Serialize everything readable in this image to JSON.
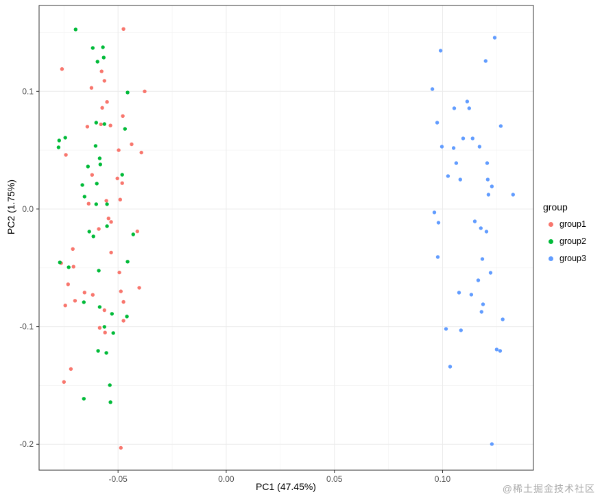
{
  "watermark": "@稀土掘金技术社区",
  "chart_data": {
    "type": "scatter",
    "title": "",
    "xlabel": "PC1 (47.45%)",
    "ylabel": "PC2 (1.75%)",
    "xlim": [
      -0.0865,
      0.142
    ],
    "ylim": [
      -0.222,
      0.173
    ],
    "grid": true,
    "grid_major_color": "#ebebeb",
    "grid_minor_color": "#f5f5f5",
    "panel_border_color": "#333333",
    "tick_color": "#333333",
    "tick_label_color": "#4d4d4d",
    "point_radius": 2.7,
    "x_ticks": [
      {
        "value": -0.05,
        "label": "-0.05"
      },
      {
        "value": 0.0,
        "label": "0.00"
      },
      {
        "value": 0.05,
        "label": "0.05"
      },
      {
        "value": 0.1,
        "label": "0.10"
      }
    ],
    "y_ticks": [
      {
        "value": 0.1,
        "label": "0.1"
      },
      {
        "value": 0.0,
        "label": "0.0"
      },
      {
        "value": -0.1,
        "label": "-0.1"
      },
      {
        "value": -0.2,
        "label": "-0.2"
      }
    ],
    "x_minor_ticks": [
      -0.075,
      -0.025,
      0.025,
      0.075,
      0.125
    ],
    "y_minor_ticks": [
      0.15,
      0.05,
      -0.05,
      -0.15
    ],
    "legend": {
      "title": "group",
      "position": "right"
    },
    "series": [
      {
        "name": "group1",
        "color": "#F8766D",
        "points": [
          [
            -0.0475,
            0.153
          ],
          [
            -0.0759,
            0.119
          ],
          [
            -0.0576,
            0.117
          ],
          [
            -0.0563,
            0.109
          ],
          [
            -0.0623,
            0.103
          ],
          [
            -0.0377,
            0.1
          ],
          [
            -0.0551,
            0.091
          ],
          [
            -0.0573,
            0.086
          ],
          [
            -0.0478,
            0.079
          ],
          [
            -0.0642,
            0.07
          ],
          [
            -0.0579,
            0.072
          ],
          [
            -0.0535,
            0.071
          ],
          [
            -0.0437,
            0.055
          ],
          [
            -0.0392,
            0.048
          ],
          [
            -0.0741,
            0.046
          ],
          [
            -0.0497,
            0.05
          ],
          [
            -0.062,
            0.029
          ],
          [
            -0.0503,
            0.026
          ],
          [
            -0.0481,
            0.022
          ],
          [
            -0.0636,
            0.0045
          ],
          [
            -0.0554,
            0.007
          ],
          [
            -0.049,
            0.008
          ],
          [
            -0.0544,
            -0.008
          ],
          [
            -0.0532,
            -0.011
          ],
          [
            -0.0589,
            -0.017
          ],
          [
            -0.0411,
            -0.019
          ],
          [
            -0.0709,
            -0.034
          ],
          [
            -0.0532,
            -0.037
          ],
          [
            -0.0763,
            -0.046
          ],
          [
            -0.0706,
            -0.049
          ],
          [
            -0.0494,
            -0.054
          ],
          [
            -0.0731,
            -0.064
          ],
          [
            -0.0655,
            -0.071
          ],
          [
            -0.0617,
            -0.073
          ],
          [
            -0.0699,
            -0.078
          ],
          [
            -0.0744,
            -0.082
          ],
          [
            -0.0487,
            -0.07
          ],
          [
            -0.0402,
            -0.067
          ],
          [
            -0.0475,
            -0.079
          ],
          [
            -0.0563,
            -0.086
          ],
          [
            -0.0585,
            -0.101
          ],
          [
            -0.056,
            -0.105
          ],
          [
            -0.0475,
            -0.095
          ],
          [
            -0.0718,
            -0.136
          ],
          [
            -0.075,
            -0.147
          ],
          [
            -0.0487,
            -0.203
          ]
        ]
      },
      {
        "name": "group2",
        "color": "#00BA38",
        "points": [
          [
            -0.0696,
            0.1526
          ],
          [
            -0.0617,
            0.1369
          ],
          [
            -0.057,
            0.1375
          ],
          [
            -0.0566,
            0.1287
          ],
          [
            -0.0595,
            0.1252
          ],
          [
            -0.0456,
            0.099
          ],
          [
            -0.0772,
            0.0582
          ],
          [
            -0.0744,
            0.0606
          ],
          [
            -0.0601,
            0.0734
          ],
          [
            -0.0563,
            0.0722
          ],
          [
            -0.0468,
            0.0681
          ],
          [
            -0.0775,
            0.0524
          ],
          [
            -0.0604,
            0.0536
          ],
          [
            -0.0585,
            0.0431
          ],
          [
            -0.0639,
            0.0361
          ],
          [
            -0.0582,
            0.0379
          ],
          [
            -0.0665,
            0.0204
          ],
          [
            -0.0598,
            0.0216
          ],
          [
            -0.0481,
            0.0291
          ],
          [
            -0.0655,
            0.0105
          ],
          [
            -0.0601,
            0.0041
          ],
          [
            -0.0551,
            0.0041
          ],
          [
            -0.0633,
            -0.0192
          ],
          [
            -0.0614,
            -0.0233
          ],
          [
            -0.0551,
            -0.0146
          ],
          [
            -0.043,
            -0.0216
          ],
          [
            -0.0769,
            -0.0454
          ],
          [
            -0.0728,
            -0.0495
          ],
          [
            -0.0589,
            -0.0524
          ],
          [
            -0.0456,
            -0.0448
          ],
          [
            -0.0658,
            -0.0792
          ],
          [
            -0.0585,
            -0.0833
          ],
          [
            -0.0528,
            -0.0891
          ],
          [
            -0.0459,
            -0.0914
          ],
          [
            -0.0563,
            -0.1002
          ],
          [
            -0.0522,
            -0.1054
          ],
          [
            -0.0592,
            -0.1206
          ],
          [
            -0.0554,
            -0.1223
          ],
          [
            -0.0538,
            -0.1497
          ],
          [
            -0.0658,
            -0.1613
          ],
          [
            -0.0535,
            -0.1642
          ]
        ]
      },
      {
        "name": "group3",
        "color": "#619CFF",
        "points": [
          [
            0.1241,
            0.1456
          ],
          [
            0.0991,
            0.1346
          ],
          [
            0.1199,
            0.1258
          ],
          [
            0.0953,
            0.1019
          ],
          [
            0.1114,
            0.0914
          ],
          [
            0.1054,
            0.0856
          ],
          [
            0.1123,
            0.0856
          ],
          [
            0.0975,
            0.0734
          ],
          [
            0.1269,
            0.0705
          ],
          [
            0.0997,
            0.053
          ],
          [
            0.1051,
            0.0518
          ],
          [
            0.1095,
            0.06
          ],
          [
            0.1139,
            0.06
          ],
          [
            0.1171,
            0.053
          ],
          [
            0.1063,
            0.039
          ],
          [
            0.1206,
            0.039
          ],
          [
            0.1025,
            0.028
          ],
          [
            0.1082,
            0.025
          ],
          [
            0.1209,
            0.025
          ],
          [
            0.1228,
            0.0192
          ],
          [
            0.1212,
            0.0122
          ],
          [
            0.1326,
            0.0122
          ],
          [
            0.0962,
            -0.0029
          ],
          [
            0.0981,
            -0.0116
          ],
          [
            0.1149,
            -0.0105
          ],
          [
            0.1177,
            -0.0163
          ],
          [
            0.1203,
            -0.0192
          ],
          [
            0.0978,
            -0.0408
          ],
          [
            0.1184,
            -0.0425
          ],
          [
            0.1222,
            -0.0542
          ],
          [
            0.1165,
            -0.0606
          ],
          [
            0.1076,
            -0.0711
          ],
          [
            0.1133,
            -0.0728
          ],
          [
            0.1187,
            -0.081
          ],
          [
            0.118,
            -0.0874
          ],
          [
            0.1278,
            -0.0938
          ],
          [
            0.1016,
            -0.1019
          ],
          [
            0.1085,
            -0.1031
          ],
          [
            0.1035,
            -0.134
          ],
          [
            0.125,
            -0.1194
          ],
          [
            0.1266,
            -0.1206
          ],
          [
            0.1228,
            -0.1998
          ]
        ]
      }
    ]
  }
}
